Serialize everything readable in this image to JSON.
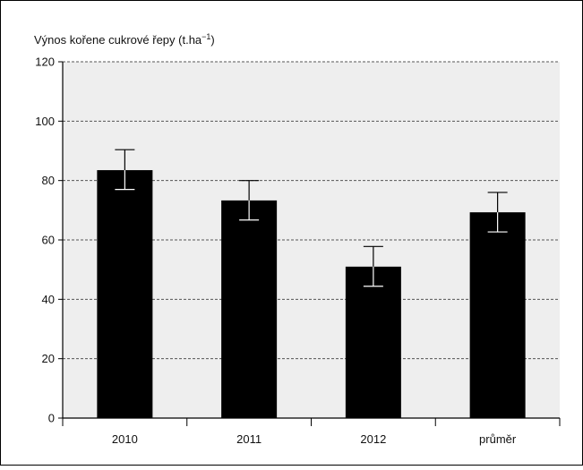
{
  "chart_data": {
    "type": "bar",
    "ylabel": "Výnos kořene cukrové řepy (t.ha",
    "ylabel_exponent": "−1",
    "ylabel_close": ")",
    "xlabel": "",
    "categories": [
      "2010",
      "2011",
      "2012",
      "průměr"
    ],
    "values": [
      83.5,
      73.3,
      51.0,
      69.3
    ],
    "error_low": [
      77.0,
      66.7,
      44.4,
      62.7
    ],
    "error_high": [
      90.4,
      80.0,
      57.8,
      76.0
    ],
    "ylim": [
      0,
      120
    ],
    "yticks": [
      0,
      20,
      40,
      60,
      80,
      100,
      120
    ],
    "grid": true,
    "colors": {
      "bar": "#000000",
      "plot_background": "#eeeeee",
      "grid": "#555555",
      "frame": "#000000"
    }
  }
}
